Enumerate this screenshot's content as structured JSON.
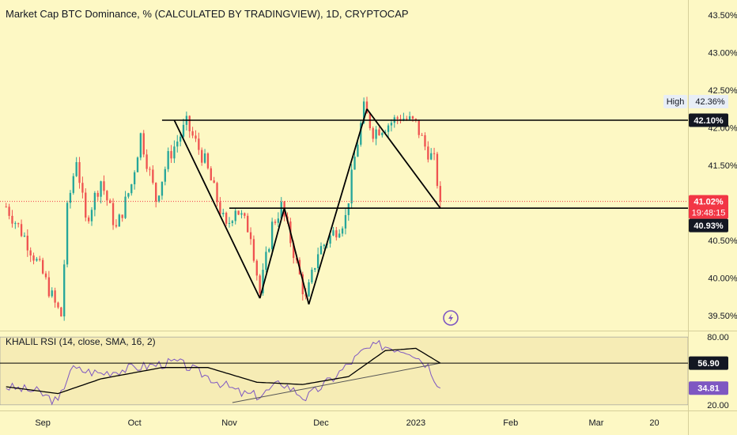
{
  "title": "Market Cap BTC Dominance, % (CALCULATED BY TRADINGVIEW), 1D, CRYPTOCAP",
  "price_axis": {
    "ticks": [
      {
        "value": 43.5,
        "label": "43.50%"
      },
      {
        "value": 43.0,
        "label": "43.00%"
      },
      {
        "value": 42.5,
        "label": "42.50%"
      },
      {
        "value": 42.0,
        "label": "42.00%"
      },
      {
        "value": 41.5,
        "label": "41.50%"
      },
      {
        "value": 40.5,
        "label": "40.50%"
      },
      {
        "value": 40.0,
        "label": "40.00%"
      },
      {
        "value": 39.5,
        "label": "39.50%"
      }
    ],
    "high_label": "High",
    "high_value": 42.36,
    "high_text": "42.36%",
    "level_top": 42.1,
    "level_top_text": "42.10%",
    "current": 41.02,
    "current_text": "41.02%",
    "countdown": "19:48:15",
    "level_bottom": 40.93,
    "level_bottom_text": "40.93%"
  },
  "rsi": {
    "label": "KHALIL RSI (14, close, SMA, 16, 2)",
    "ticks": [
      {
        "value": 80,
        "label": "80.00"
      },
      {
        "value": 20,
        "label": "20.00"
      }
    ],
    "rsi_value": 34.81,
    "rsi_text": "34.81",
    "ma_value": 56.9,
    "ma_text": "56.90",
    "band_top": 80,
    "band_bottom": 20
  },
  "time_axis": [
    "Sep",
    "Oct",
    "Nov",
    "Dec",
    "2023",
    "Feb",
    "Mar",
    "20"
  ],
  "colors": {
    "up": "#26a69a",
    "down": "#ef5350",
    "background": "#fdf8c4",
    "rsi_line": "#7e57c2",
    "ma_line": "#000000",
    "current_price": "#f23645"
  },
  "icons": {
    "replay": "lightning-icon"
  },
  "chart_data": {
    "type": "candlestick",
    "symbol": "Market Cap BTC Dominance, % (CALCULATED BY TRADINGVIEW), 1D, CRYPTOCAP",
    "ylim": [
      39.3,
      43.7
    ],
    "rsi_ylim": [
      15,
      85
    ],
    "price_path": [
      [
        "2022-08-20",
        40.95
      ],
      [
        "2022-08-26",
        40.55
      ],
      [
        "2022-09-01",
        40.05
      ],
      [
        "2022-09-05",
        39.65
      ],
      [
        "2022-09-07",
        39.5
      ],
      [
        "2022-09-09",
        40.9
      ],
      [
        "2022-09-12",
        41.6
      ],
      [
        "2022-09-15",
        40.75
      ],
      [
        "2022-09-20",
        41.3
      ],
      [
        "2022-09-25",
        40.65
      ],
      [
        "2022-09-30",
        41.25
      ],
      [
        "2022-10-03",
        41.9
      ],
      [
        "2022-10-08",
        41.05
      ],
      [
        "2022-10-12",
        41.6
      ],
      [
        "2022-10-18",
        42.05
      ],
      [
        "2022-10-24",
        41.55
      ],
      [
        "2022-10-31",
        40.65
      ],
      [
        "2022-11-03",
        40.95
      ],
      [
        "2022-11-08",
        40.6
      ],
      [
        "2022-11-11",
        39.8
      ],
      [
        "2022-11-15",
        40.7
      ],
      [
        "2022-11-18",
        40.95
      ],
      [
        "2022-11-22",
        40.35
      ],
      [
        "2022-11-26",
        39.7
      ],
      [
        "2022-11-30",
        40.35
      ],
      [
        "2022-12-04",
        40.55
      ],
      [
        "2022-12-09",
        40.8
      ],
      [
        "2022-12-12",
        41.6
      ],
      [
        "2022-12-15",
        42.25
      ],
      [
        "2022-12-18",
        41.95
      ],
      [
        "2022-12-23",
        42.05
      ],
      [
        "2022-12-27",
        42.15
      ],
      [
        "2023-01-01",
        42.05
      ],
      [
        "2023-01-04",
        41.75
      ],
      [
        "2023-01-07",
        41.55
      ],
      [
        "2023-01-09",
        41.02
      ]
    ],
    "horizontal_lines": [
      42.1,
      40.93
    ],
    "pattern_lines": [
      [
        [
          "2022-10-14",
          42.1
        ],
        [
          "2022-11-11",
          39.73
        ]
      ],
      [
        [
          "2022-11-11",
          39.73
        ],
        [
          "2022-11-19",
          40.93
        ]
      ],
      [
        [
          "2022-11-19",
          40.93
        ],
        [
          "2022-11-27",
          39.65
        ]
      ],
      [
        [
          "2022-11-27",
          39.65
        ],
        [
          "2022-12-16",
          42.25
        ]
      ],
      [
        [
          "2022-12-16",
          42.25
        ],
        [
          "2023-01-09",
          40.93
        ]
      ]
    ],
    "rsi_path": [
      [
        "2022-08-20",
        36
      ],
      [
        "2022-08-30",
        32
      ],
      [
        "2022-09-06",
        22
      ],
      [
        "2022-09-10",
        52
      ],
      [
        "2022-09-20",
        48
      ],
      [
        "2022-10-01",
        53
      ],
      [
        "2022-10-15",
        58
      ],
      [
        "2022-10-25",
        45
      ],
      [
        "2022-11-05",
        30
      ],
      [
        "2022-11-11",
        28
      ],
      [
        "2022-11-18",
        40
      ],
      [
        "2022-11-26",
        26
      ],
      [
        "2022-12-05",
        44
      ],
      [
        "2022-12-15",
        68
      ],
      [
        "2022-12-20",
        73
      ],
      [
        "2022-12-30",
        68
      ],
      [
        "2023-01-05",
        55
      ],
      [
        "2023-01-09",
        34.81
      ]
    ],
    "rsi_ma_path": [
      [
        "2022-08-20",
        36
      ],
      [
        "2022-09-06",
        30
      ],
      [
        "2022-09-20",
        43
      ],
      [
        "2022-10-10",
        53
      ],
      [
        "2022-10-25",
        53
      ],
      [
        "2022-11-10",
        40
      ],
      [
        "2022-11-25",
        38
      ],
      [
        "2022-12-10",
        45
      ],
      [
        "2022-12-22",
        68
      ],
      [
        "2023-01-01",
        70
      ],
      [
        "2023-01-09",
        56.9
      ]
    ],
    "rsi_trendline": [
      [
        "2022-11-02",
        22
      ],
      [
        "2023-01-09",
        56.9
      ]
    ]
  }
}
